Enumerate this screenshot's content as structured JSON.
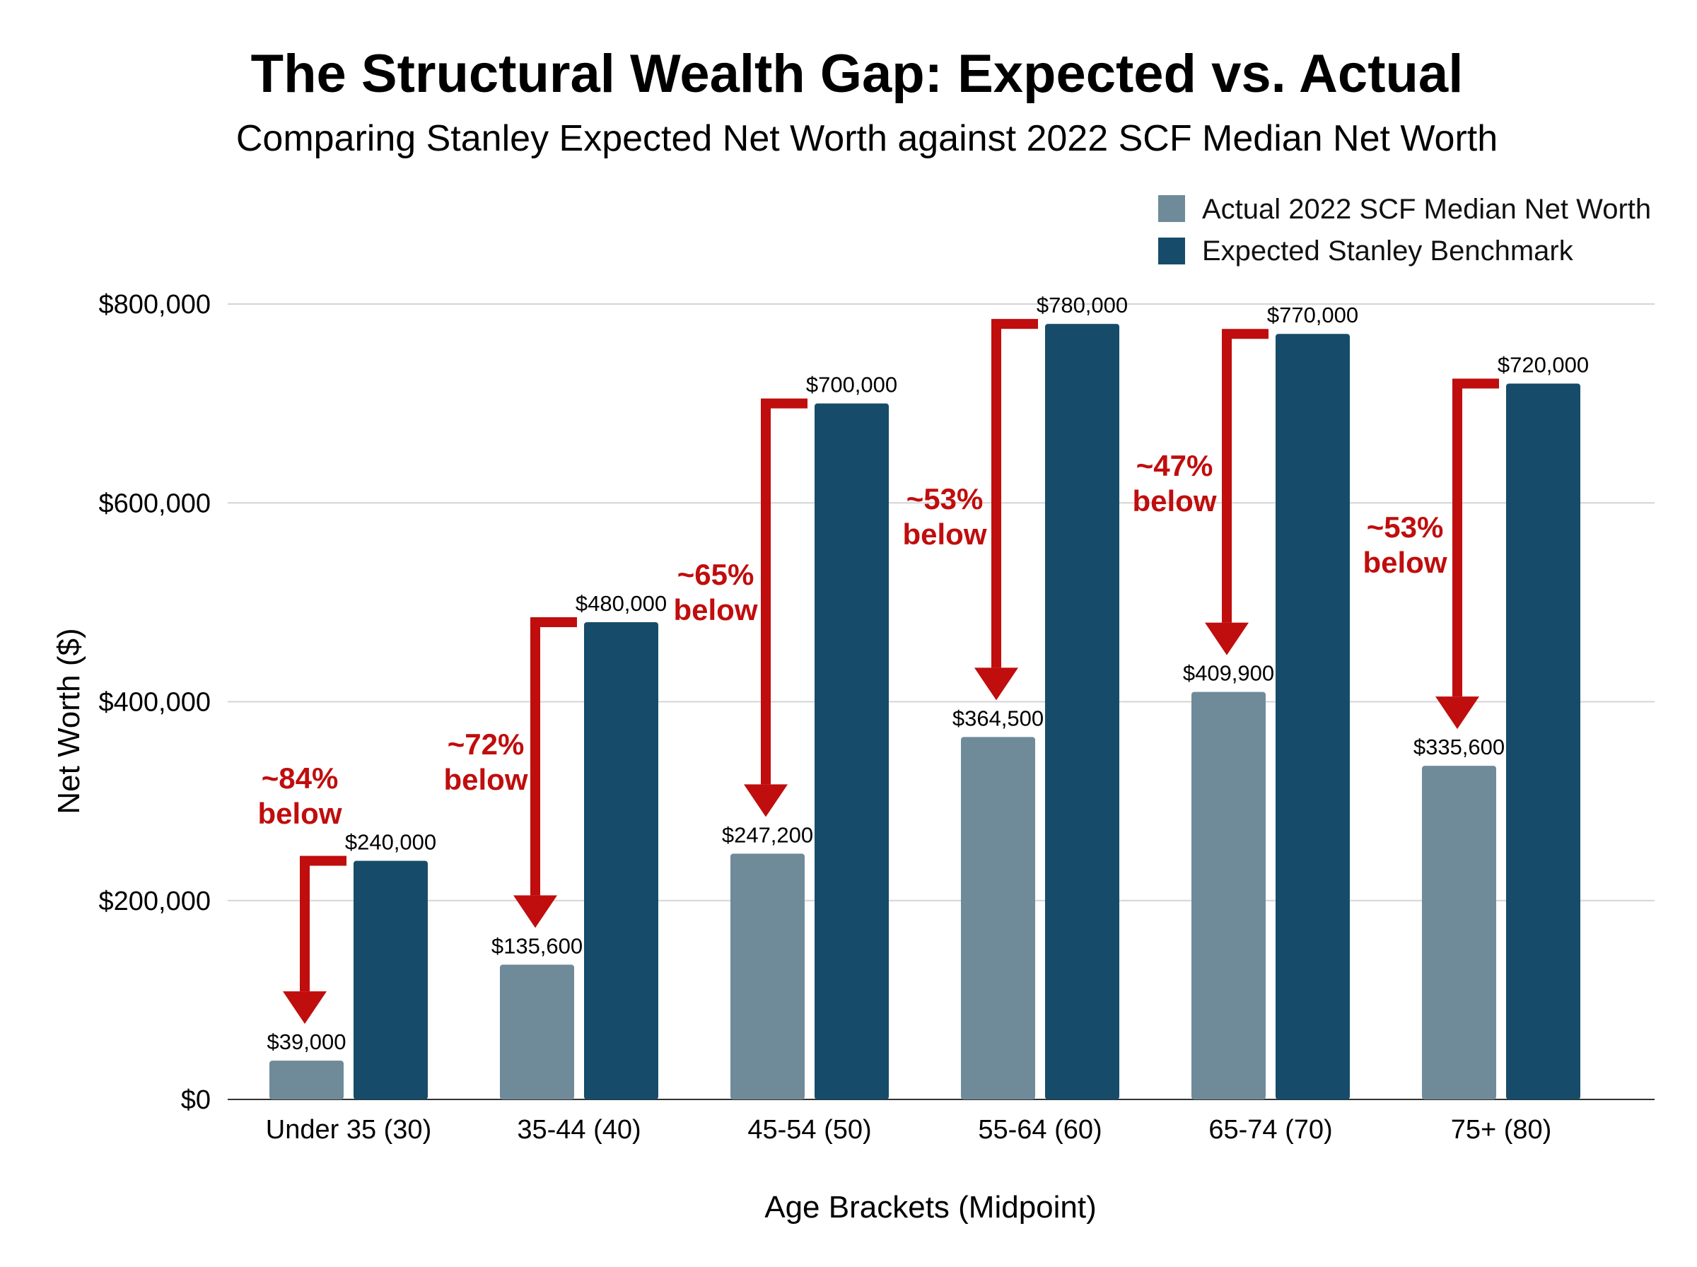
{
  "chart_data": {
    "type": "bar",
    "title": "The Structural Wealth Gap: Expected vs. Actual",
    "subtitle": "Comparing Stanley Expected Net Worth against 2022 SCF Median Net Worth",
    "xlabel": "Age Brackets (Midpoint)",
    "ylabel": "Net Worth ($)",
    "ylim": [
      0,
      800000
    ],
    "yticks": [
      0,
      200000,
      400000,
      600000,
      800000
    ],
    "ytick_labels": [
      "$0",
      "$200,000",
      "$400,000",
      "$600,000",
      "$800,000"
    ],
    "grid": true,
    "legend_position": "top-right",
    "categories": [
      "Under 35 (30)",
      "35-44 (40)",
      "45-54 (50)",
      "55-64 (60)",
      "65-74 (70)",
      "75+ (80)"
    ],
    "series": [
      {
        "name": "Actual 2022 SCF Median Net Worth",
        "color": "#6f8b99",
        "values": [
          39000,
          135600,
          247200,
          364500,
          409900,
          335600
        ],
        "labels": [
          "$39,000",
          "$135,600",
          "$247,200",
          "$364,500",
          "$409,900",
          "$335,600"
        ]
      },
      {
        "name": "Expected Stanley Benchmark",
        "color": "#164c69",
        "values": [
          240000,
          480000,
          700000,
          780000,
          770000,
          720000
        ],
        "labels": [
          "$240,000",
          "$480,000",
          "$700,000",
          "$780,000",
          "$770,000",
          "$720,000"
        ]
      }
    ],
    "annotations": [
      {
        "pct": "~84%",
        "word": "below"
      },
      {
        "pct": "~72%",
        "word": "below"
      },
      {
        "pct": "~65%",
        "word": "below"
      },
      {
        "pct": "~53%",
        "word": "below"
      },
      {
        "pct": "~47%",
        "word": "below"
      },
      {
        "pct": "~53%",
        "word": "below"
      }
    ],
    "annotation_color": "#c00d0d"
  }
}
